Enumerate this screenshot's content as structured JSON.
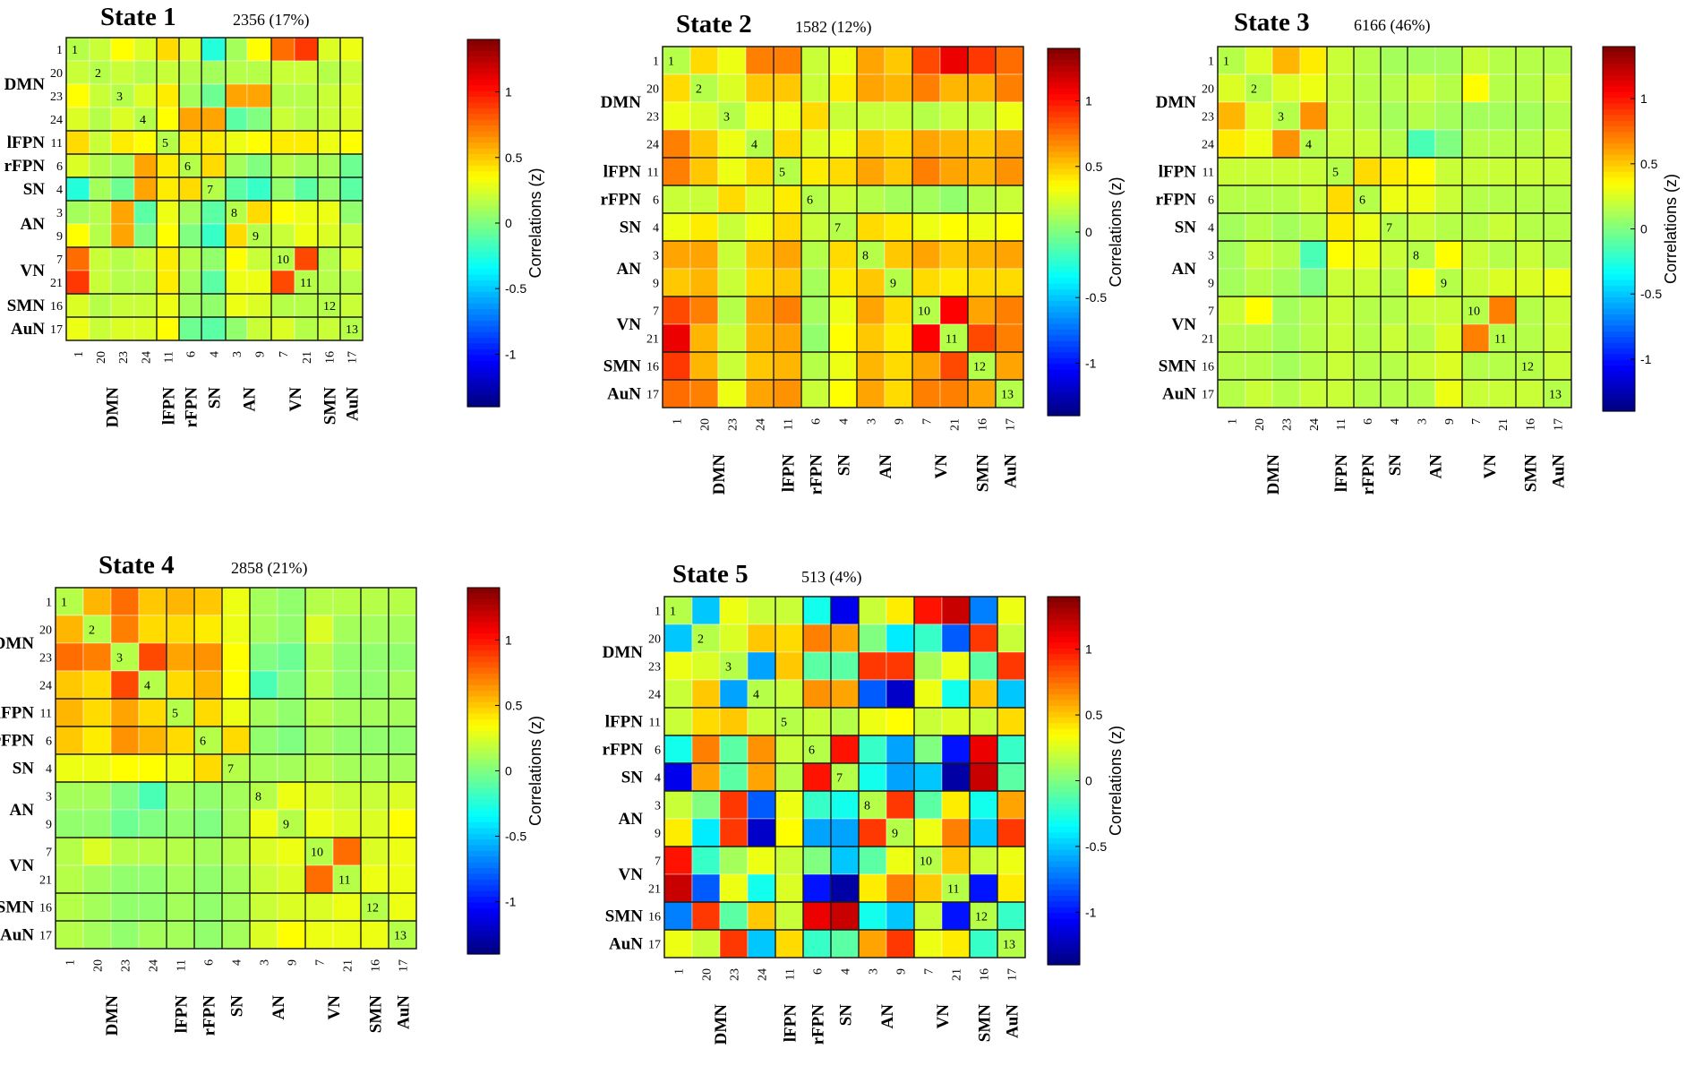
{
  "chart_data": {
    "type": "heatmap",
    "description_free": true,
    "component_order": [
      "1",
      "20",
      "23",
      "24",
      "11",
      "6",
      "4",
      "3",
      "9",
      "7",
      "21",
      "16",
      "17"
    ],
    "networks": [
      {
        "name": "DMN",
        "members": [
          "1",
          "20",
          "23",
          "24"
        ]
      },
      {
        "name": "lFPN",
        "members": [
          "11"
        ]
      },
      {
        "name": "rFPN",
        "members": [
          "6"
        ]
      },
      {
        "name": "SN",
        "members": [
          "4"
        ]
      },
      {
        "name": "AN",
        "members": [
          "3",
          "9"
        ]
      },
      {
        "name": "VN",
        "members": [
          "7",
          "21"
        ]
      },
      {
        "name": "SMN",
        "members": [
          "16"
        ]
      },
      {
        "name": "AuN",
        "members": [
          "17"
        ]
      }
    ],
    "diagonal_labels": [
      "1",
      "2",
      "3",
      "4",
      "5",
      "6",
      "7",
      "8",
      "9",
      "10",
      "11",
      "12",
      "13"
    ],
    "colorbar": {
      "label": "Correlations (z)",
      "range": [
        -1.4,
        1.4
      ],
      "ticks": [
        "-1",
        "-0.5",
        "0",
        "0.5",
        "1"
      ],
      "tick_values": [
        -1,
        -0.5,
        0,
        0.5,
        1
      ],
      "colormap": "jet"
    },
    "states": [
      {
        "title": "State 1",
        "count": "2356 (17%)",
        "matrix": [
          [
            0.15,
            0.2,
            0.35,
            0.25,
            0.45,
            0.25,
            -0.25,
            0.1,
            0.35,
            0.75,
            0.9,
            0.25,
            0.3
          ],
          [
            0.2,
            0.15,
            0.2,
            0.15,
            0.2,
            0.15,
            0.1,
            0.15,
            0.15,
            0.2,
            0.2,
            0.15,
            0.2
          ],
          [
            0.35,
            0.2,
            0.15,
            0.25,
            0.4,
            0.1,
            -0.05,
            0.6,
            0.6,
            0.15,
            0.15,
            0.2,
            0.25
          ],
          [
            0.25,
            0.15,
            0.25,
            0.15,
            0.35,
            0.6,
            0.6,
            -0.1,
            0.0,
            0.2,
            0.15,
            0.2,
            0.25
          ],
          [
            0.45,
            0.2,
            0.4,
            0.35,
            0.15,
            0.4,
            0.4,
            0.3,
            0.35,
            0.4,
            0.4,
            0.3,
            0.35
          ],
          [
            0.25,
            0.15,
            0.1,
            0.6,
            0.4,
            0.15,
            0.45,
            0.1,
            0.0,
            0.15,
            0.1,
            0.1,
            -0.05
          ],
          [
            -0.25,
            0.1,
            -0.05,
            0.6,
            0.4,
            0.45,
            0.15,
            -0.1,
            -0.2,
            0.05,
            -0.1,
            0.05,
            -0.1
          ],
          [
            0.1,
            0.15,
            0.6,
            -0.1,
            0.3,
            0.1,
            -0.1,
            0.15,
            0.45,
            0.35,
            0.3,
            0.3,
            0.05
          ],
          [
            0.35,
            0.15,
            0.6,
            0.0,
            0.35,
            0.0,
            -0.2,
            0.45,
            0.15,
            0.2,
            0.3,
            0.25,
            0.2
          ],
          [
            0.75,
            0.2,
            0.15,
            0.2,
            0.4,
            0.15,
            0.05,
            0.35,
            0.2,
            0.15,
            0.85,
            0.15,
            0.25
          ],
          [
            0.9,
            0.2,
            0.15,
            0.15,
            0.4,
            0.1,
            -0.1,
            0.3,
            0.3,
            0.85,
            0.15,
            0.15,
            0.15
          ],
          [
            0.25,
            0.15,
            0.2,
            0.2,
            0.3,
            0.1,
            0.05,
            0.3,
            0.25,
            0.15,
            0.15,
            0.15,
            0.2
          ],
          [
            0.3,
            0.2,
            0.25,
            0.25,
            0.35,
            -0.05,
            -0.1,
            0.05,
            0.2,
            0.25,
            0.15,
            0.2,
            0.15
          ]
        ]
      },
      {
        "title": "State 2",
        "count": "1582 (12%)",
        "matrix": [
          [
            0.15,
            0.45,
            0.3,
            0.7,
            0.7,
            0.2,
            0.3,
            0.6,
            0.5,
            0.85,
            1.1,
            0.9,
            0.75
          ],
          [
            0.45,
            0.15,
            0.25,
            0.5,
            0.5,
            0.2,
            0.4,
            0.6,
            0.55,
            0.7,
            0.55,
            0.55,
            0.7
          ],
          [
            0.3,
            0.25,
            0.15,
            0.3,
            0.3,
            0.45,
            0.2,
            0.2,
            0.2,
            0.15,
            0.2,
            0.2,
            0.3
          ],
          [
            0.7,
            0.5,
            0.3,
            0.15,
            0.45,
            0.25,
            0.3,
            0.5,
            0.45,
            0.6,
            0.55,
            0.5,
            0.6
          ],
          [
            0.7,
            0.5,
            0.3,
            0.45,
            0.15,
            0.4,
            0.45,
            0.6,
            0.5,
            0.7,
            0.6,
            0.55,
            0.65
          ],
          [
            0.2,
            0.2,
            0.45,
            0.25,
            0.4,
            0.15,
            0.2,
            0.15,
            0.1,
            0.1,
            0.05,
            0.15,
            0.2
          ],
          [
            0.3,
            0.4,
            0.2,
            0.3,
            0.45,
            0.2,
            0.15,
            0.45,
            0.4,
            0.3,
            0.35,
            0.3,
            0.35
          ],
          [
            0.6,
            0.6,
            0.2,
            0.5,
            0.6,
            0.15,
            0.45,
            0.15,
            0.5,
            0.6,
            0.5,
            0.55,
            0.6
          ],
          [
            0.5,
            0.55,
            0.2,
            0.45,
            0.5,
            0.1,
            0.4,
            0.5,
            0.15,
            0.45,
            0.4,
            0.45,
            0.45
          ],
          [
            0.85,
            0.7,
            0.15,
            0.6,
            0.7,
            0.1,
            0.3,
            0.6,
            0.45,
            0.15,
            1.05,
            0.6,
            0.7
          ],
          [
            1.1,
            0.55,
            0.2,
            0.55,
            0.6,
            0.05,
            0.35,
            0.5,
            0.4,
            1.05,
            0.15,
            0.85,
            0.7
          ],
          [
            0.9,
            0.55,
            0.2,
            0.5,
            0.55,
            0.15,
            0.3,
            0.55,
            0.45,
            0.6,
            0.85,
            0.15,
            0.6
          ],
          [
            0.75,
            0.7,
            0.3,
            0.6,
            0.65,
            0.2,
            0.35,
            0.6,
            0.45,
            0.7,
            0.7,
            0.6,
            0.15
          ]
        ]
      },
      {
        "title": "State 3",
        "count": "6166 (46%)",
        "matrix": [
          [
            0.15,
            0.25,
            0.55,
            0.4,
            0.2,
            0.15,
            0.1,
            0.1,
            0.1,
            0.2,
            0.15,
            0.15,
            0.15
          ],
          [
            0.25,
            0.15,
            0.25,
            0.3,
            0.2,
            0.15,
            0.15,
            0.2,
            0.15,
            0.35,
            0.15,
            0.15,
            0.2
          ],
          [
            0.55,
            0.25,
            0.15,
            0.65,
            0.2,
            0.15,
            0.1,
            0.15,
            0.1,
            0.1,
            0.1,
            0.1,
            0.15
          ],
          [
            0.4,
            0.3,
            0.65,
            0.15,
            0.2,
            0.2,
            0.15,
            -0.15,
            0.0,
            0.15,
            0.15,
            0.15,
            0.2
          ],
          [
            0.2,
            0.2,
            0.2,
            0.2,
            0.15,
            0.45,
            0.4,
            0.35,
            0.2,
            0.2,
            0.2,
            0.2,
            0.2
          ],
          [
            0.15,
            0.15,
            0.15,
            0.2,
            0.45,
            0.15,
            0.3,
            0.3,
            0.2,
            0.15,
            0.15,
            0.15,
            0.15
          ],
          [
            0.1,
            0.15,
            0.1,
            0.15,
            0.4,
            0.3,
            0.15,
            0.2,
            0.15,
            0.15,
            0.2,
            0.15,
            0.15
          ],
          [
            0.1,
            0.2,
            0.15,
            -0.15,
            0.35,
            0.3,
            0.2,
            0.15,
            0.35,
            0.2,
            0.15,
            0.2,
            0.15
          ],
          [
            0.1,
            0.15,
            0.1,
            0.0,
            0.2,
            0.2,
            0.15,
            0.35,
            0.15,
            0.2,
            0.25,
            0.25,
            0.3
          ],
          [
            0.2,
            0.35,
            0.1,
            0.15,
            0.2,
            0.15,
            0.15,
            0.2,
            0.2,
            0.15,
            0.7,
            0.15,
            0.2
          ],
          [
            0.15,
            0.15,
            0.1,
            0.15,
            0.2,
            0.15,
            0.2,
            0.15,
            0.25,
            0.7,
            0.15,
            0.15,
            0.2
          ],
          [
            0.15,
            0.15,
            0.1,
            0.15,
            0.2,
            0.15,
            0.15,
            0.2,
            0.25,
            0.15,
            0.15,
            0.15,
            0.2
          ],
          [
            0.15,
            0.2,
            0.15,
            0.2,
            0.2,
            0.15,
            0.15,
            0.15,
            0.3,
            0.2,
            0.2,
            0.2,
            0.15
          ]
        ]
      },
      {
        "title": "State 4",
        "count": "2858 (21%)",
        "matrix": [
          [
            0.15,
            0.55,
            0.75,
            0.5,
            0.55,
            0.5,
            0.3,
            0.1,
            0.05,
            0.15,
            0.15,
            0.15,
            0.15
          ],
          [
            0.55,
            0.15,
            0.7,
            0.45,
            0.45,
            0.4,
            0.3,
            0.1,
            0.05,
            0.25,
            0.1,
            0.1,
            0.1
          ],
          [
            0.75,
            0.7,
            0.15,
            0.85,
            0.6,
            0.65,
            0.35,
            0.0,
            -0.05,
            0.15,
            0.05,
            0.05,
            0.05
          ],
          [
            0.5,
            0.45,
            0.85,
            0.15,
            0.45,
            0.55,
            0.35,
            -0.15,
            0.0,
            0.15,
            0.05,
            0.05,
            0.1
          ],
          [
            0.55,
            0.45,
            0.6,
            0.45,
            0.15,
            0.45,
            0.3,
            0.1,
            0.05,
            0.15,
            0.1,
            0.1,
            0.1
          ],
          [
            0.5,
            0.4,
            0.65,
            0.55,
            0.45,
            0.15,
            0.45,
            0.05,
            0.0,
            0.1,
            0.05,
            0.05,
            0.05
          ],
          [
            0.3,
            0.3,
            0.35,
            0.35,
            0.3,
            0.45,
            0.15,
            0.1,
            0.1,
            0.15,
            0.1,
            0.1,
            0.1
          ],
          [
            0.1,
            0.1,
            0.0,
            -0.15,
            0.1,
            0.05,
            0.1,
            0.15,
            0.3,
            0.25,
            0.2,
            0.2,
            0.25
          ],
          [
            0.05,
            0.05,
            -0.05,
            0.0,
            0.05,
            0.0,
            0.1,
            0.3,
            0.15,
            0.3,
            0.25,
            0.25,
            0.35
          ],
          [
            0.15,
            0.25,
            0.15,
            0.15,
            0.15,
            0.1,
            0.15,
            0.25,
            0.3,
            0.15,
            0.75,
            0.25,
            0.3
          ],
          [
            0.15,
            0.1,
            0.05,
            0.05,
            0.1,
            0.05,
            0.1,
            0.2,
            0.25,
            0.75,
            0.15,
            0.3,
            0.3
          ],
          [
            0.15,
            0.1,
            0.05,
            0.05,
            0.1,
            0.05,
            0.1,
            0.2,
            0.25,
            0.25,
            0.3,
            0.15,
            0.3
          ],
          [
            0.15,
            0.1,
            0.05,
            0.1,
            0.1,
            0.05,
            0.1,
            0.25,
            0.35,
            0.3,
            0.3,
            0.3,
            0.15
          ]
        ]
      },
      {
        "title": "State 5",
        "count": "513 (4%)",
        "matrix": [
          [
            0.15,
            -0.5,
            0.3,
            0.2,
            0.2,
            -0.3,
            -1.1,
            0.2,
            0.4,
            1.0,
            1.2,
            -0.7,
            0.3
          ],
          [
            -0.5,
            0.15,
            0.25,
            0.5,
            0.45,
            0.7,
            0.6,
            0.0,
            -0.4,
            -0.2,
            -0.8,
            0.9,
            0.2
          ],
          [
            0.3,
            0.25,
            0.15,
            -0.6,
            0.5,
            -0.1,
            -0.1,
            0.9,
            0.9,
            0.1,
            0.3,
            -0.1,
            0.9
          ],
          [
            0.2,
            0.5,
            -0.6,
            0.15,
            0.2,
            0.65,
            0.6,
            -0.8,
            -1.2,
            0.3,
            -0.3,
            0.5,
            -0.5
          ],
          [
            0.2,
            0.45,
            0.5,
            0.2,
            0.15,
            0.2,
            0.15,
            0.3,
            0.35,
            0.2,
            0.25,
            0.2,
            0.45
          ],
          [
            -0.3,
            0.7,
            -0.1,
            0.65,
            0.2,
            0.15,
            1.0,
            -0.2,
            -0.6,
            0.0,
            -1.0,
            1.1,
            -0.2
          ],
          [
            -1.1,
            0.6,
            -0.1,
            0.6,
            0.15,
            1.0,
            0.15,
            -0.3,
            -0.6,
            -0.5,
            -1.3,
            1.2,
            -0.1
          ],
          [
            0.2,
            0.0,
            0.9,
            -0.8,
            0.3,
            -0.2,
            -0.3,
            0.15,
            0.9,
            -0.1,
            0.4,
            -0.3,
            0.6
          ],
          [
            0.4,
            -0.4,
            0.9,
            -1.2,
            0.35,
            -0.6,
            -0.6,
            0.9,
            0.15,
            0.3,
            0.7,
            -0.5,
            0.9
          ],
          [
            1.0,
            -0.2,
            0.1,
            0.3,
            0.2,
            0.0,
            -0.5,
            -0.1,
            0.3,
            0.15,
            0.5,
            0.2,
            0.3
          ],
          [
            1.2,
            -0.8,
            0.3,
            -0.3,
            0.25,
            -1.0,
            -1.3,
            0.4,
            0.7,
            0.5,
            0.15,
            -1.0,
            0.4
          ],
          [
            -0.7,
            0.9,
            -0.1,
            0.5,
            0.2,
            1.1,
            1.2,
            -0.3,
            -0.5,
            0.2,
            -1.0,
            0.15,
            -0.2
          ],
          [
            0.3,
            0.2,
            0.9,
            -0.5,
            0.45,
            -0.2,
            -0.1,
            0.6,
            0.9,
            0.3,
            0.4,
            -0.2,
            0.15
          ]
        ]
      }
    ]
  }
}
